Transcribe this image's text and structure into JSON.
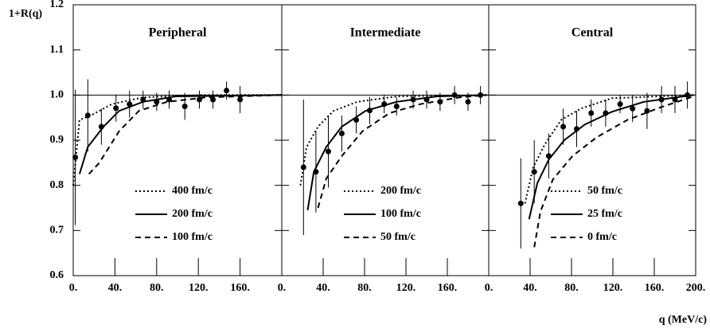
{
  "chart_data": [
    {
      "type": "line",
      "title": "Peripheral",
      "y_label": "1+R(q)",
      "xlim": [
        0,
        200
      ],
      "ylim": [
        0.6,
        1.2
      ],
      "xticks": [
        {
          "value": 0,
          "label": "0."
        },
        {
          "value": 40,
          "label": "40."
        },
        {
          "value": 80,
          "label": "80."
        },
        {
          "value": 120,
          "label": "120."
        },
        {
          "value": 160,
          "label": "160."
        }
      ],
      "yticks": [
        0.6,
        0.7,
        0.8,
        0.9,
        {
          "value": 1,
          "label": "1.0"
        },
        1.1,
        1.2
      ],
      "reference_line": 1,
      "series": [
        {
          "name": "400 fm/c",
          "color": "#000000",
          "dash": "dotted",
          "x": [
            0,
            6,
            17,
            37,
            67,
            120,
            200
          ],
          "values": [
            0.8,
            0.945,
            0.955,
            0.98,
            0.995,
            1.0,
            1.0
          ]
        },
        {
          "name": "200 fm/c",
          "color": "#000000",
          "dash": "solid",
          "x": [
            6,
            14,
            29,
            44,
            67,
            98,
            200
          ],
          "values": [
            0.825,
            0.885,
            0.93,
            0.965,
            0.985,
            0.997,
            1.0
          ]
        },
        {
          "name": "100 fm/c",
          "color": "#000000",
          "dash": "dashed",
          "x": [
            15,
            25,
            44,
            63,
            90,
            128,
            200
          ],
          "values": [
            0.825,
            0.85,
            0.92,
            0.965,
            0.985,
            0.995,
            1.0
          ]
        }
      ],
      "points": {
        "color": "#000000",
        "x": [
          2,
          14,
          27,
          41,
          54,
          67,
          80,
          92,
          107,
          121,
          134,
          147,
          160
        ],
        "values": [
          0.862,
          0.955,
          0.93,
          0.971,
          0.98,
          0.99,
          0.985,
          0.99,
          0.975,
          0.99,
          0.99,
          1.01,
          0.99
        ],
        "errors": [
          0.15,
          0.08,
          0.04,
          0.03,
          0.03,
          0.02,
          0.02,
          0.02,
          0.03,
          0.02,
          0.02,
          0.02,
          0.03
        ]
      }
    },
    {
      "type": "line",
      "title": "Intermediate",
      "xlim": [
        0,
        200
      ],
      "ylim": [
        0.6,
        1.2
      ],
      "xticks": [
        {
          "value": 0,
          "label": "0."
        },
        {
          "value": 40,
          "label": "40."
        },
        {
          "value": 80,
          "label": "80."
        },
        {
          "value": 120,
          "label": "120."
        },
        {
          "value": 160,
          "label": "160."
        }
      ],
      "series": [
        {
          "name": "200 fm/c",
          "color": "#000000",
          "dash": "dotted",
          "x": [
            18,
            24,
            35,
            50,
            73,
            111,
            198
          ],
          "values": [
            0.8,
            0.885,
            0.93,
            0.965,
            0.985,
            0.997,
            1.0
          ]
        },
        {
          "name": "100 fm/c",
          "color": "#000000",
          "dash": "solid",
          "x": [
            25,
            31,
            43,
            58,
            81,
            111,
            150,
            198
          ],
          "values": [
            0.745,
            0.83,
            0.885,
            0.93,
            0.965,
            0.985,
            0.997,
            1.0
          ]
        },
        {
          "name": "50 fm/c",
          "color": "#000000",
          "dash": "dashed",
          "x": [
            35,
            43,
            58,
            78,
            104,
            134,
            172,
            198
          ],
          "values": [
            0.75,
            0.815,
            0.865,
            0.92,
            0.96,
            0.98,
            0.995,
            1.0
          ]
        }
      ],
      "points": {
        "color": "#000000",
        "x": [
          21,
          33,
          45,
          58,
          72,
          85,
          99,
          111,
          127,
          140,
          153,
          167,
          180,
          192
        ],
        "values": [
          0.84,
          0.83,
          0.875,
          0.915,
          0.945,
          0.966,
          0.98,
          0.975,
          0.99,
          0.99,
          0.985,
          1.0,
          0.985,
          1.0
        ],
        "errors": [
          0.15,
          0.09,
          0.08,
          0.04,
          0.03,
          0.03,
          0.02,
          0.02,
          0.02,
          0.02,
          0.02,
          0.02,
          0.02,
          0.02
        ]
      }
    },
    {
      "type": "line",
      "title": "Central",
      "x_label": "q (MeV/c)",
      "xlim": [
        0,
        200
      ],
      "ylim": [
        0.6,
        1.2
      ],
      "xticks": [
        {
          "value": 0,
          "label": "0."
        },
        {
          "value": 40,
          "label": "40."
        },
        {
          "value": 80,
          "label": "80."
        },
        {
          "value": 120,
          "label": "120."
        },
        {
          "value": 160,
          "label": "160."
        },
        {
          "value": 200,
          "label": "200."
        }
      ],
      "series": [
        {
          "name": "50 fm/c",
          "color": "#000000",
          "dash": "dotted",
          "x": [
            35,
            43,
            54,
            70,
            89,
            119,
            198
          ],
          "values": [
            0.76,
            0.84,
            0.89,
            0.945,
            0.97,
            0.993,
            1.0
          ]
        },
        {
          "name": "25 fm/c",
          "color": "#000000",
          "dash": "solid",
          "x": [
            39,
            47,
            58,
            73,
            93,
            119,
            150,
            198
          ],
          "values": [
            0.725,
            0.805,
            0.857,
            0.9,
            0.935,
            0.963,
            0.985,
            1.0
          ]
        },
        {
          "name": "0 fm/c",
          "color": "#000000",
          "dash": "dashed",
          "x": [
            44,
            50,
            62,
            81,
            104,
            134,
            165,
            198
          ],
          "values": [
            0.663,
            0.742,
            0.813,
            0.865,
            0.906,
            0.945,
            0.972,
            0.997
          ]
        }
      ],
      "points": {
        "color": "#000000",
        "x": [
          31,
          44,
          58,
          72,
          85,
          99,
          113,
          127,
          139,
          153,
          167,
          180,
          192
        ],
        "values": [
          0.76,
          0.83,
          0.865,
          0.93,
          0.925,
          0.96,
          0.96,
          0.98,
          0.97,
          0.965,
          0.99,
          0.99,
          1.0
        ],
        "errors": [
          0.1,
          0.07,
          0.05,
          0.04,
          0.04,
          0.03,
          0.03,
          0.02,
          0.03,
          0.04,
          0.03,
          0.03,
          0.03
        ]
      }
    }
  ]
}
